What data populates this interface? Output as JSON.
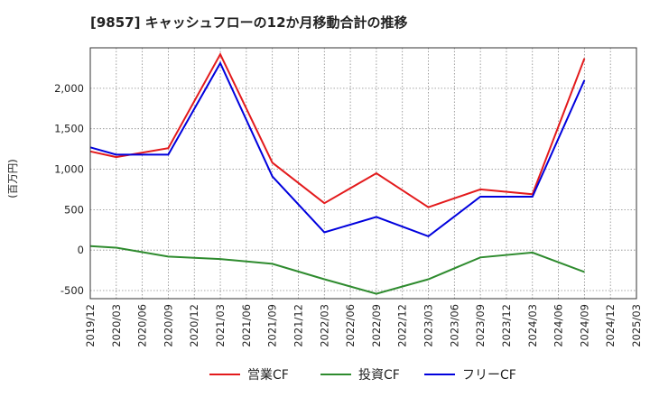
{
  "chart_data": {
    "type": "line",
    "title": "[9857]  キャッシュフローの12か月移動合計の推移",
    "ylabel": "(百万円)",
    "xlabel": "",
    "ylim": [
      -600,
      2500
    ],
    "yticks": [
      -500,
      0,
      500,
      1000,
      1500,
      2000
    ],
    "ytick_labels": [
      "-500",
      "0",
      "500",
      "1,000",
      "1,500",
      "2,000"
    ],
    "categories": [
      "2019/12",
      "2020/03",
      "2020/06",
      "2020/09",
      "2020/12",
      "2021/03",
      "2021/06",
      "2021/09",
      "2021/12",
      "2022/03",
      "2022/06",
      "2022/09",
      "2022/12",
      "2023/03",
      "2023/06",
      "2023/09",
      "2023/12",
      "2024/03",
      "2024/06",
      "2024/09",
      "2024/12",
      "2025/03"
    ],
    "grid": true,
    "legend_position": "bottom-center",
    "series": [
      {
        "name": "営業CF",
        "color": "#e31a1c",
        "values": [
          1220,
          1150,
          null,
          1260,
          null,
          2420,
          null,
          1080,
          null,
          580,
          null,
          950,
          null,
          530,
          null,
          750,
          null,
          690,
          null,
          2370,
          null,
          null
        ]
      },
      {
        "name": "投資CF",
        "color": "#2e8b2e",
        "values": [
          50,
          30,
          null,
          -80,
          null,
          -110,
          null,
          -170,
          null,
          -360,
          null,
          -540,
          null,
          -360,
          null,
          -90,
          null,
          -30,
          null,
          -270,
          null,
          null
        ]
      },
      {
        "name": "フリーCF",
        "color": "#0000dd",
        "values": [
          1270,
          1180,
          null,
          1180,
          null,
          2310,
          null,
          910,
          null,
          220,
          null,
          410,
          null,
          170,
          null,
          660,
          null,
          660,
          null,
          2100,
          null,
          null
        ]
      }
    ]
  }
}
